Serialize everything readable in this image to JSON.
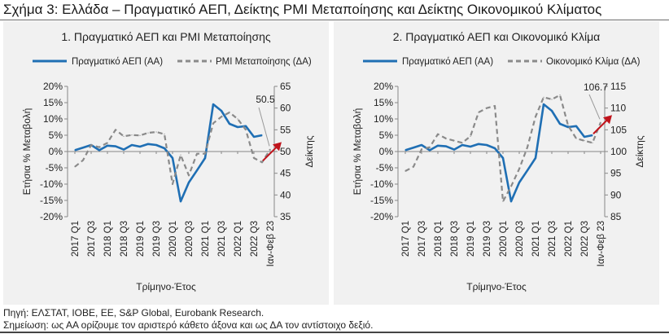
{
  "figure_title": "Σχήμα 3: Ελλάδα – Πραγματικό ΑΕΠ, Δείκτης PMI Μεταποίησης και Δείκτης Οικονομικού Κλίματος",
  "source": "Πηγή: ΕΛΣΤΑΤ, ΙΟΒΕ, ΕΕ, S&P Global, Eurobank Research.",
  "note": "Σημείωση: ως ΑΑ ορίζουμε τον αριστερό κάθετο άξονα και ως ΔΑ τον αντίστοιχο δεξιό.",
  "colors": {
    "gdp": "#1f6fb4",
    "right_series": "#8a8a8a",
    "arrow": "#c0141c",
    "panel_bg": "#f1f1f1"
  },
  "chart_data": [
    {
      "type": "line",
      "title": "1. Πραγματικό ΑΕΠ και PMI Μεταποίησης",
      "xlabel": "Τρίμηνο-Έτος",
      "ylabel_left": "Ετήσια % Μεταβολή",
      "ylabel_right": "Δείκτης",
      "x_tick_labels": [
        "2017 Q1",
        "2017 Q3",
        "2018 Q1",
        "2018 Q3",
        "2019 Q1",
        "2019 Q3",
        "2020 Q1",
        "2020 Q3",
        "2021 Q1",
        "2021 Q3",
        "2022 Q1",
        "2022 Q3",
        "Ιαν-Φεβ 23"
      ],
      "y_left_ticks": [
        "20%",
        "15%",
        "10%",
        "5%",
        "0%",
        "-5%",
        "-10%",
        "-15%",
        "-20%"
      ],
      "y_left_range": [
        -20,
        20
      ],
      "y_right_ticks": [
        "65",
        "60",
        "55",
        "50",
        "45",
        "40",
        "35"
      ],
      "y_right_range": [
        35,
        65
      ],
      "grid": false,
      "legend_position": "top",
      "series": [
        {
          "name": "Πραγματικό ΑΕΠ (ΑΑ)",
          "axis": "left",
          "style": "solid",
          "values": [
            0.4,
            1.2,
            2.0,
            0.4,
            1.8,
            1.6,
            0.6,
            2.0,
            1.5,
            2.3,
            2.0,
            1.0,
            -2.0,
            -15.3,
            -9.5,
            -5.8,
            -2.0,
            14.5,
            12.5,
            8.5,
            7.5,
            7.8,
            4.5,
            5.0
          ]
        },
        {
          "name": "PMI Μεταποίησης (ΔΑ)",
          "axis": "right",
          "style": "dashed",
          "values": [
            46.5,
            48.0,
            51.5,
            51.0,
            52.0,
            55.0,
            53.5,
            53.8,
            53.7,
            54.3,
            54.5,
            54.0,
            42.5,
            49.2,
            44.5,
            49.5,
            49.5,
            56.5,
            58.0,
            59.0,
            57.5,
            55.0,
            48.5,
            47.5,
            50.5
          ]
        }
      ],
      "annotation": {
        "label": "50.5",
        "value": 50.5,
        "axis": "right"
      }
    },
    {
      "type": "line",
      "title": "2. Πραγματικό ΑΕΠ και Οικονομικό Κλίμα",
      "xlabel": "Τρίμηνο-Έτος",
      "ylabel_left": "Ετήσια % Μεταβολή",
      "ylabel_right": "Δείκτης",
      "x_tick_labels": [
        "2017 Q1",
        "2017 Q3",
        "2018 Q1",
        "2018 Q3",
        "2019 Q1",
        "2019 Q3",
        "2020 Q1",
        "2020 Q3",
        "2021 Q1",
        "2021 Q3",
        "2022 Q1",
        "2022 Q3",
        "Ιαν-Φεβ 23"
      ],
      "y_left_ticks": [
        "20%",
        "15%",
        "10%",
        "5%",
        "0%",
        "-5%",
        "-10%",
        "-15%",
        "-20%"
      ],
      "y_left_range": [
        -20,
        20
      ],
      "y_right_ticks": [
        "115",
        "110",
        "105",
        "100",
        "95",
        "90",
        "85"
      ],
      "y_right_range": [
        85,
        115
      ],
      "grid": false,
      "legend_position": "top",
      "series": [
        {
          "name": "Πραγματικό ΑΕΠ (ΑΑ)",
          "axis": "left",
          "style": "solid",
          "values": [
            0.4,
            1.2,
            2.0,
            0.4,
            1.8,
            1.6,
            0.6,
            2.0,
            1.5,
            2.3,
            2.0,
            1.0,
            -2.0,
            -15.3,
            -9.5,
            -5.8,
            -2.0,
            14.5,
            12.5,
            8.5,
            7.5,
            7.8,
            4.5,
            5.0
          ]
        },
        {
          "name": "Οικονομικό Κλίμα (ΔΑ)",
          "axis": "right",
          "style": "dashed",
          "values": [
            95.5,
            96.5,
            100.5,
            101.0,
            104.0,
            103.0,
            102.5,
            102.0,
            103.5,
            109.0,
            110.0,
            110.5,
            88.5,
            92.0,
            96.0,
            101.0,
            108.0,
            112.5,
            112.0,
            113.0,
            106.0,
            103.0,
            102.5,
            102.0,
            106.7
          ]
        }
      ],
      "annotation": {
        "label": "106.7",
        "value": 106.7,
        "axis": "right"
      }
    }
  ]
}
